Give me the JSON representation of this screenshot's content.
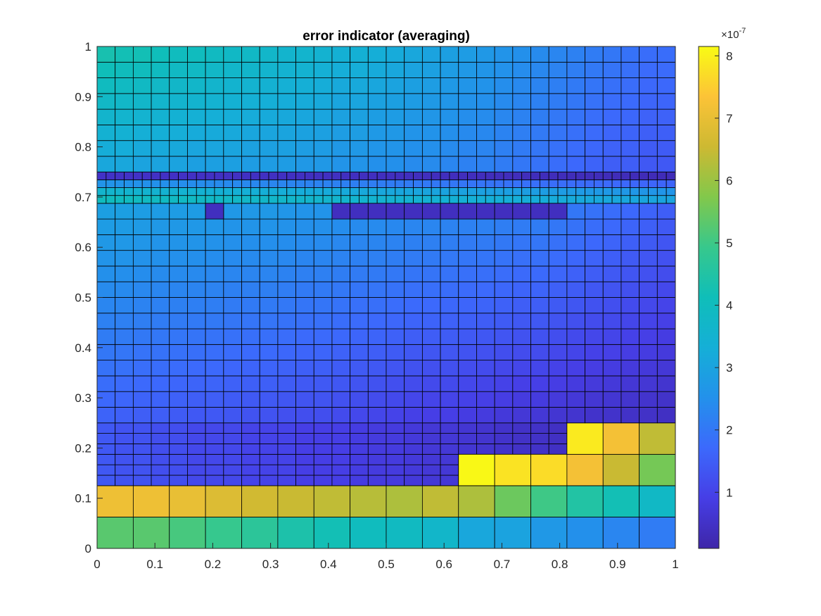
{
  "chart_data": {
    "type": "heatmap",
    "title": "error indicator (averaging)",
    "xlabel": "",
    "ylabel": "",
    "xlim": [
      0,
      1
    ],
    "ylim": [
      0,
      1
    ],
    "xticks": [
      "0",
      "0.1",
      "0.2",
      "0.3",
      "0.4",
      "0.5",
      "0.6",
      "0.7",
      "0.8",
      "0.9",
      "1"
    ],
    "yticks": [
      "0",
      "0.1",
      "0.2",
      "0.3",
      "0.4",
      "0.5",
      "0.6",
      "0.7",
      "0.8",
      "0.9",
      "1"
    ],
    "colormap": "parula",
    "value_units": "x1e-7",
    "colorbar": {
      "range": [
        0.1,
        8.15
      ],
      "ticks": [
        "1",
        "2",
        "3",
        "4",
        "5",
        "6",
        "7",
        "8"
      ],
      "exponent_label": "×10",
      "exponent": "-7"
    },
    "cells": [
      {
        "x0": 0,
        "x1": 1,
        "y0": 0,
        "y1": 0.0625,
        "nx": 16,
        "ny": 1,
        "values": [
          [
            5.3,
            5.3,
            5.1,
            4.9,
            4.7,
            4.4,
            4.2,
            4.0,
            3.9,
            3.7,
            3.1,
            3.0,
            2.7,
            2.5,
            2.3,
            2.1
          ]
        ]
      },
      {
        "x0": 0,
        "x1": 1,
        "y0": 0.0625,
        "y1": 0.125,
        "nx": 16,
        "ny": 1,
        "values": [
          [
            7.1,
            7.1,
            7.0,
            6.8,
            6.6,
            6.5,
            6.4,
            6.3,
            6.2,
            6.4,
            6.2,
            5.5,
            5.0,
            4.5,
            4.2,
            3.8
          ]
        ]
      },
      {
        "x0": 0,
        "x1": 1,
        "y0": 0.125,
        "y1": 0.25,
        "nx": 32,
        "ny": 6,
        "values": [
          [
            1.4,
            1.3,
            1.3,
            1.2,
            1.2,
            1.1,
            1.1,
            1.1,
            1.0,
            1.0,
            1.0,
            0.9,
            0.9,
            0.9,
            0.85,
            0.8,
            0.8,
            0.75,
            0.7,
            0.7,
            0.65,
            0.6,
            0.55,
            0.5,
            0.5,
            0.45,
            0.45,
            0.4,
            0.4,
            0.4,
            0.35,
            0.35
          ]
        ]
      },
      {
        "x0": 0.625,
        "x1": 1,
        "y0": 0.125,
        "y1": 0.1875,
        "nx": 6,
        "ny": 1,
        "values": [
          [
            8.1,
            7.8,
            7.7,
            7.2,
            6.5,
            5.6
          ]
        ]
      },
      {
        "x0": 0.8125,
        "x1": 1,
        "y0": 0.1875,
        "y1": 0.25,
        "nx": 3,
        "ny": 1,
        "values": [
          [
            7.9,
            7.2,
            6.4
          ]
        ]
      },
      {
        "x0": 0,
        "x1": 1,
        "y0": 0.25,
        "y1": 0.6875,
        "nx": 32,
        "ny": 14,
        "values_top": [
          2.9,
          2.9,
          2.85,
          2.8,
          2.8,
          2.8,
          2.75,
          2.7,
          2.7,
          2.7,
          2.65,
          2.6,
          2.6,
          2.55,
          2.5,
          2.5,
          2.45,
          2.4,
          2.4,
          2.35,
          2.3,
          2.3,
          2.25,
          2.2,
          2.2,
          2.1,
          2.0,
          1.9,
          1.8,
          1.7,
          1.6,
          1.5
        ],
        "values_bottom": [
          1.6,
          1.55,
          1.5,
          1.5,
          1.45,
          1.4,
          1.4,
          1.35,
          1.3,
          1.3,
          1.25,
          1.2,
          1.2,
          1.15,
          1.1,
          1.05,
          1.0,
          0.95,
          0.9,
          0.9,
          0.85,
          0.8,
          0.75,
          0.7,
          0.7,
          0.65,
          0.6,
          0.55,
          0.55,
          0.5,
          0.5,
          0.45
        ]
      },
      {
        "x0": 0,
        "x1": 1,
        "y0": 0.6875,
        "y1": 0.75,
        "nx": 64,
        "ny": 4,
        "values_rows_bottom_to_top": [
          4.0,
          3.6,
          2.6,
          0.5
        ]
      },
      {
        "x0": 0,
        "x1": 1,
        "y0": 0.75,
        "y1": 1,
        "nx": 32,
        "ny": 8,
        "values_top": [
          4.3,
          4.2,
          4.2,
          4.1,
          4.0,
          4.0,
          3.9,
          3.8,
          3.8,
          3.7,
          3.6,
          3.6,
          3.5,
          3.4,
          3.4,
          3.3,
          3.2,
          3.1,
          3.0,
          2.9,
          2.8,
          2.7,
          2.6,
          2.5,
          2.4,
          2.3,
          2.2,
          2.1,
          2.0,
          1.9,
          1.8,
          1.8
        ],
        "values_bottom": [
          3.1,
          3.1,
          3.0,
          3.0,
          3.0,
          2.9,
          2.9,
          2.9,
          2.8,
          2.8,
          2.8,
          2.7,
          2.7,
          2.6,
          2.6,
          2.5,
          2.5,
          2.4,
          2.4,
          2.3,
          2.2,
          2.2,
          2.1,
          2.0,
          1.9,
          1.8,
          1.7,
          1.6,
          1.5,
          1.5,
          1.4,
          1.4
        ]
      }
    ],
    "low_value_cells": {
      "value": 0.4,
      "description": "row between y=0.65625 and y=0.6875",
      "x_ranges": [
        [
          0.1875,
          0.21875
        ],
        [
          0.40625,
          0.8125
        ]
      ]
    }
  }
}
